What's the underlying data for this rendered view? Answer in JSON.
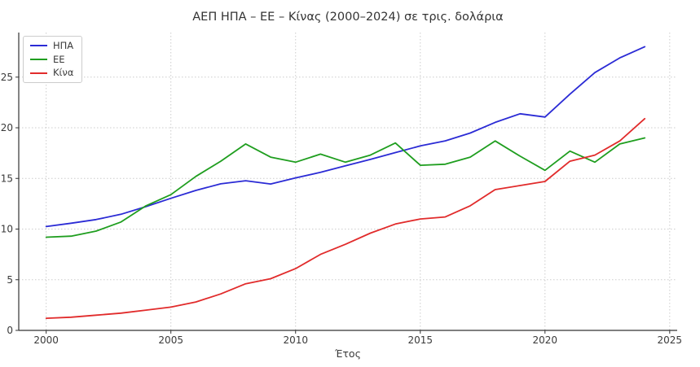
{
  "page": {
    "background": "#ffffff"
  },
  "chart_data": {
    "type": "line",
    "title": "ΑΕΠ ΗΠΑ – ΕΕ – Κίνας (2000–2024) σε τρις. δολάρια",
    "xlabel": "Έτος",
    "ylabel": "",
    "x": [
      2000,
      2001,
      2002,
      2003,
      2004,
      2005,
      2006,
      2007,
      2008,
      2009,
      2010,
      2011,
      2012,
      2013,
      2014,
      2015,
      2016,
      2017,
      2018,
      2019,
      2020,
      2021,
      2022,
      2023,
      2024
    ],
    "series": [
      {
        "name": "ΗΠΑ",
        "color": "#2b2bd5",
        "values": [
          10.25,
          10.58,
          10.94,
          11.46,
          12.22,
          13.04,
          13.82,
          14.47,
          14.77,
          14.45,
          15.05,
          15.6,
          16.25,
          16.88,
          17.55,
          18.21,
          18.71,
          19.48,
          20.53,
          21.38,
          21.06,
          23.32,
          25.45,
          26.9,
          28.0
        ]
      },
      {
        "name": "ΕΕ",
        "color": "#1f9e1f",
        "values": [
          9.2,
          9.3,
          9.8,
          10.7,
          12.3,
          13.4,
          15.2,
          16.7,
          18.4,
          17.1,
          16.6,
          17.4,
          16.6,
          17.3,
          18.5,
          16.3,
          16.4,
          17.1,
          18.7,
          17.2,
          15.8,
          17.7,
          16.6,
          18.4,
          19.0
        ]
      },
      {
        "name": "Κίνα",
        "color": "#e12b2b",
        "values": [
          1.2,
          1.3,
          1.5,
          1.7,
          2.0,
          2.3,
          2.8,
          3.6,
          4.6,
          5.1,
          6.1,
          7.5,
          8.5,
          9.6,
          10.5,
          11.0,
          11.2,
          12.3,
          13.9,
          14.3,
          14.7,
          16.7,
          17.3,
          18.7,
          20.9
        ]
      }
    ],
    "xticks": [
      2000,
      2005,
      2010,
      2015,
      2020,
      2025
    ],
    "yticks": [
      0,
      5,
      10,
      15,
      20,
      25
    ],
    "xlim": [
      1998.9,
      2025.3
    ],
    "ylim": [
      0,
      29.4
    ],
    "grid": "dotted",
    "legend_position": "upper left",
    "axis_color": "#333333",
    "grid_color": "#cccccc",
    "text_color": "#3a3a3a"
  }
}
